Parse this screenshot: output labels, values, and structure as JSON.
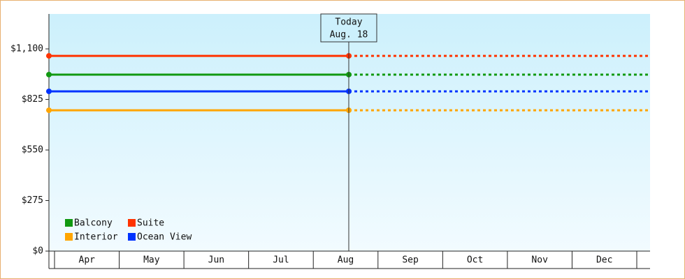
{
  "chart_data": {
    "type": "line",
    "categories": [
      "Apr",
      "May",
      "Jun",
      "Jul",
      "Aug",
      "Sep",
      "Oct",
      "Nov",
      "Dec"
    ],
    "today": [
      "Today",
      "Aug. 18"
    ],
    "series": [
      {
        "name": "Balcony",
        "color": "#119911",
        "value": 960
      },
      {
        "name": "Suite",
        "color": "#ff3300",
        "value": 1062
      },
      {
        "name": "Interior",
        "color": "#ffa500",
        "value": 766
      },
      {
        "name": "Ocean View",
        "color": "#0033ff",
        "value": 869
      }
    ],
    "ylim": [
      0,
      1290
    ],
    "yticks": [
      {
        "value": 0,
        "label": "$0"
      },
      {
        "value": 275,
        "label": "$275"
      },
      {
        "value": 550,
        "label": "$550"
      },
      {
        "value": 825,
        "label": "$825"
      },
      {
        "value": 1100,
        "label": "$1,100"
      }
    ]
  }
}
